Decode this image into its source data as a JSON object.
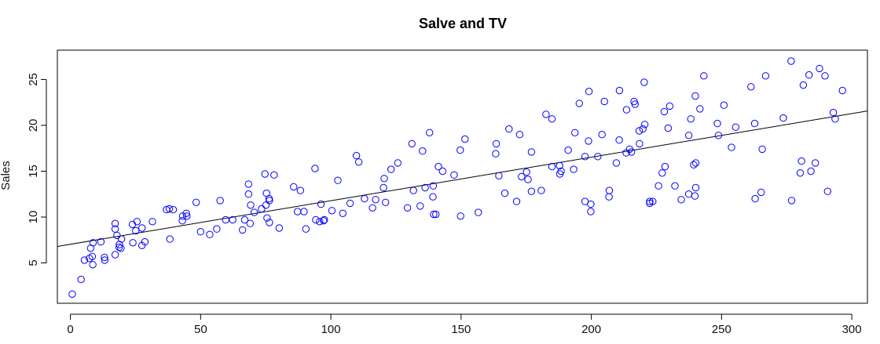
{
  "chart_data": {
    "type": "scatter",
    "title": "Salve and TV",
    "xlabel": "",
    "ylabel": "Sales",
    "xlim": [
      -5,
      306
    ],
    "ylim": [
      0.6,
      28.2
    ],
    "x_ticks": [
      0,
      50,
      100,
      150,
      200,
      250,
      300
    ],
    "y_ticks": [
      5,
      10,
      15,
      20,
      25
    ],
    "x_tick_labels": [
      "0",
      "50",
      "100",
      "150",
      "200",
      "250",
      "300"
    ],
    "y_tick_labels": [
      "5",
      "10",
      "15",
      "20",
      "25"
    ],
    "grid": false,
    "legend": "none",
    "point_color": "#0000ff",
    "line_color": "#000000",
    "regression_line": {
      "intercept": 7.03,
      "slope": 0.0475
    },
    "points": [
      [
        0.7,
        1.6
      ],
      [
        4.1,
        3.2
      ],
      [
        5.4,
        5.3
      ],
      [
        7.3,
        5.5
      ],
      [
        7.8,
        6.6
      ],
      [
        8.4,
        5.7
      ],
      [
        8.6,
        4.8
      ],
      [
        8.7,
        7.2
      ],
      [
        11.7,
        7.3
      ],
      [
        13.1,
        5.6
      ],
      [
        13.2,
        5.3
      ],
      [
        17.2,
        5.9
      ],
      [
        17.2,
        8.7
      ],
      [
        17.2,
        9.3
      ],
      [
        17.9,
        8.0
      ],
      [
        18.7,
        6.7
      ],
      [
        18.8,
        7.0
      ],
      [
        19.4,
        6.6
      ],
      [
        19.6,
        7.6
      ],
      [
        23.8,
        9.2
      ],
      [
        24.0,
        7.2
      ],
      [
        25.1,
        8.5
      ],
      [
        25.6,
        9.5
      ],
      [
        27.5,
        6.9
      ],
      [
        27.5,
        8.8
      ],
      [
        28.6,
        7.3
      ],
      [
        31.5,
        9.5
      ],
      [
        36.9,
        10.8
      ],
      [
        38.0,
        10.9
      ],
      [
        38.2,
        7.6
      ],
      [
        39.5,
        10.8
      ],
      [
        43.0,
        9.6
      ],
      [
        43.1,
        10.1
      ],
      [
        44.5,
        10.4
      ],
      [
        44.7,
        10.1
      ],
      [
        48.3,
        11.6
      ],
      [
        50.0,
        8.4
      ],
      [
        53.5,
        8.1
      ],
      [
        56.2,
        8.7
      ],
      [
        57.5,
        11.8
      ],
      [
        59.6,
        9.7
      ],
      [
        62.3,
        9.7
      ],
      [
        66.1,
        8.6
      ],
      [
        66.9,
        9.7
      ],
      [
        68.4,
        12.5
      ],
      [
        68.4,
        13.6
      ],
      [
        69.0,
        9.3
      ],
      [
        69.2,
        11.3
      ],
      [
        70.6,
        10.5
      ],
      [
        73.4,
        10.9
      ],
      [
        74.7,
        14.7
      ],
      [
        75.1,
        11.3
      ],
      [
        75.3,
        12.6
      ],
      [
        75.5,
        9.9
      ],
      [
        76.3,
        12.0
      ],
      [
        76.4,
        9.4
      ],
      [
        76.4,
        11.8
      ],
      [
        78.2,
        14.6
      ],
      [
        80.2,
        8.8
      ],
      [
        85.7,
        13.3
      ],
      [
        87.2,
        10.6
      ],
      [
        88.3,
        12.9
      ],
      [
        89.7,
        10.6
      ],
      [
        90.4,
        8.7
      ],
      [
        93.9,
        15.3
      ],
      [
        94.2,
        9.7
      ],
      [
        95.7,
        9.5
      ],
      [
        96.2,
        11.4
      ],
      [
        97.2,
        9.6
      ],
      [
        97.5,
        9.7
      ],
      [
        100.4,
        10.7
      ],
      [
        102.7,
        14.0
      ],
      [
        104.6,
        10.4
      ],
      [
        107.4,
        11.5
      ],
      [
        109.8,
        16.7
      ],
      [
        110.7,
        16.0
      ],
      [
        112.9,
        12.0
      ],
      [
        116.0,
        11.0
      ],
      [
        117.2,
        11.9
      ],
      [
        120.2,
        13.2
      ],
      [
        120.5,
        14.2
      ],
      [
        121.0,
        11.6
      ],
      [
        123.1,
        15.2
      ],
      [
        125.7,
        15.9
      ],
      [
        129.4,
        11.0
      ],
      [
        131.1,
        18.0
      ],
      [
        131.7,
        12.9
      ],
      [
        134.3,
        11.2
      ],
      [
        135.2,
        17.2
      ],
      [
        136.2,
        13.2
      ],
      [
        137.9,
        19.2
      ],
      [
        139.2,
        12.2
      ],
      [
        139.3,
        13.4
      ],
      [
        139.5,
        10.3
      ],
      [
        140.3,
        10.3
      ],
      [
        141.3,
        15.5
      ],
      [
        142.9,
        15.0
      ],
      [
        147.3,
        14.6
      ],
      [
        149.7,
        17.3
      ],
      [
        149.8,
        10.1
      ],
      [
        151.5,
        18.5
      ],
      [
        156.6,
        10.5
      ],
      [
        163.3,
        16.9
      ],
      [
        163.5,
        18.0
      ],
      [
        164.5,
        14.5
      ],
      [
        166.8,
        12.6
      ],
      [
        168.4,
        19.6
      ],
      [
        171.3,
        11.7
      ],
      [
        172.5,
        19.0
      ],
      [
        173.2,
        14.4
      ],
      [
        175.1,
        14.9
      ],
      [
        175.7,
        14.1
      ],
      [
        177.0,
        12.8
      ],
      [
        177.0,
        17.1
      ],
      [
        180.8,
        12.9
      ],
      [
        182.6,
        21.2
      ],
      [
        184.9,
        20.7
      ],
      [
        184.9,
        15.5
      ],
      [
        187.8,
        15.6
      ],
      [
        187.9,
        14.7
      ],
      [
        188.4,
        15.0
      ],
      [
        191.1,
        17.3
      ],
      [
        193.2,
        15.2
      ],
      [
        193.7,
        19.2
      ],
      [
        195.4,
        22.4
      ],
      [
        197.6,
        11.7
      ],
      [
        197.6,
        16.6
      ],
      [
        198.9,
        18.3
      ],
      [
        199.1,
        23.7
      ],
      [
        199.8,
        11.4
      ],
      [
        199.8,
        10.6
      ],
      [
        202.5,
        16.6
      ],
      [
        204.1,
        19.0
      ],
      [
        205.0,
        22.6
      ],
      [
        206.8,
        12.2
      ],
      [
        206.9,
        12.9
      ],
      [
        209.6,
        15.9
      ],
      [
        210.7,
        18.4
      ],
      [
        210.8,
        23.8
      ],
      [
        213.4,
        17.0
      ],
      [
        213.5,
        21.7
      ],
      [
        214.7,
        17.4
      ],
      [
        215.4,
        17.1
      ],
      [
        216.4,
        22.6
      ],
      [
        216.8,
        22.3
      ],
      [
        218.4,
        19.4
      ],
      [
        218.5,
        18.0
      ],
      [
        219.8,
        19.6
      ],
      [
        220.3,
        24.7
      ],
      [
        220.5,
        20.1
      ],
      [
        222.4,
        11.7
      ],
      [
        222.4,
        11.5
      ],
      [
        223.6,
        11.7
      ],
      [
        225.8,
        13.4
      ],
      [
        227.2,
        14.8
      ],
      [
        228.0,
        21.5
      ],
      [
        228.3,
        15.5
      ],
      [
        229.5,
        19.7
      ],
      [
        230.1,
        22.1
      ],
      [
        232.1,
        13.4
      ],
      [
        234.5,
        11.9
      ],
      [
        237.4,
        12.5
      ],
      [
        237.4,
        18.9
      ],
      [
        238.2,
        20.7
      ],
      [
        239.3,
        15.7
      ],
      [
        239.8,
        12.3
      ],
      [
        239.9,
        23.2
      ],
      [
        240.1,
        13.2
      ],
      [
        240.1,
        15.9
      ],
      [
        241.7,
        21.8
      ],
      [
        243.2,
        25.4
      ],
      [
        248.4,
        20.2
      ],
      [
        248.8,
        18.9
      ],
      [
        250.9,
        22.2
      ],
      [
        253.8,
        17.6
      ],
      [
        255.4,
        19.8
      ],
      [
        261.3,
        24.2
      ],
      [
        262.7,
        20.2
      ],
      [
        262.9,
        12.0
      ],
      [
        265.2,
        12.7
      ],
      [
        265.6,
        17.4
      ],
      [
        266.9,
        25.4
      ],
      [
        273.7,
        20.8
      ],
      [
        276.7,
        27.0
      ],
      [
        276.9,
        11.8
      ],
      [
        280.2,
        14.8
      ],
      [
        280.7,
        16.1
      ],
      [
        281.4,
        24.4
      ],
      [
        283.6,
        25.5
      ],
      [
        284.3,
        15.0
      ],
      [
        286.0,
        15.9
      ],
      [
        287.6,
        26.2
      ],
      [
        289.7,
        25.4
      ],
      [
        290.7,
        12.8
      ],
      [
        292.9,
        21.4
      ],
      [
        293.6,
        20.7
      ],
      [
        296.4,
        23.8
      ]
    ]
  }
}
